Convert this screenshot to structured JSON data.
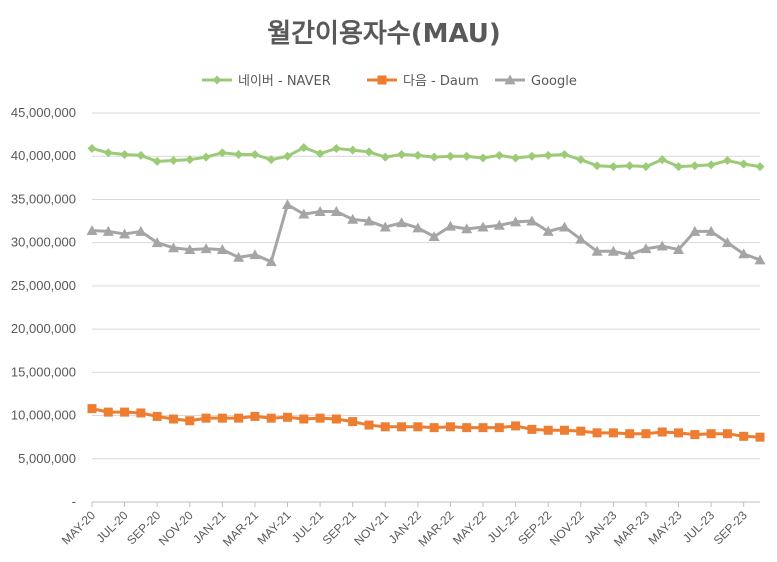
{
  "chart_data": {
    "type": "line",
    "title": "월간이용자수(MAU)",
    "xlabel": "",
    "ylabel": "",
    "ylim": [
      0,
      45000000
    ],
    "yticks": [
      0,
      5000000,
      10000000,
      15000000,
      20000000,
      25000000,
      30000000,
      35000000,
      40000000,
      45000000
    ],
    "ytick_labels": [
      "-",
      "5,000,000",
      "10,000,000",
      "15,000,000",
      "20,000,000",
      "25,000,000",
      "30,000,000",
      "35,000,000",
      "40,000,000",
      "45,000,000"
    ],
    "grid": true,
    "legend_position": "top",
    "x": [
      "MAY-20",
      "JUN-20",
      "JUL-20",
      "AUG-20",
      "SEP-20",
      "OCT-20",
      "NOV-20",
      "DEC-20",
      "JAN-21",
      "FEB-21",
      "MAR-21",
      "APR-21",
      "MAY-21",
      "JUN-21",
      "JUL-21",
      "AUG-21",
      "SEP-21",
      "OCT-21",
      "NOV-21",
      "DEC-21",
      "JAN-22",
      "FEB-22",
      "MAR-22",
      "APR-22",
      "MAY-22",
      "JUN-22",
      "JUL-22",
      "AUG-22",
      "SEP-22",
      "OCT-22",
      "NOV-22",
      "DEC-22",
      "JAN-23",
      "FEB-23",
      "MAR-23",
      "APR-23",
      "MAY-23",
      "JUN-23",
      "JUL-23",
      "AUG-23",
      "SEP-23",
      "OCT-23"
    ],
    "x_tick_labels": [
      "MAY-20",
      "JUL-20",
      "SEP-20",
      "NOV-20",
      "JAN-21",
      "MAR-21",
      "MAY-21",
      "JUL-21",
      "SEP-21",
      "NOV-21",
      "JAN-22",
      "MAR-22",
      "MAY-22",
      "JUL-22",
      "SEP-22",
      "NOV-22",
      "JAN-23",
      "MAR-23",
      "MAY-23",
      "JUL-23",
      "SEP-23"
    ],
    "series": [
      {
        "name": "네이버 - NAVER",
        "color": "#9BCB77",
        "marker": "diamond",
        "values": [
          40900000,
          40400000,
          40200000,
          40100000,
          39400000,
          39500000,
          39600000,
          39900000,
          40400000,
          40200000,
          40200000,
          39600000,
          40000000,
          41000000,
          40300000,
          40900000,
          40700000,
          40500000,
          39900000,
          40200000,
          40100000,
          39900000,
          40000000,
          40000000,
          39800000,
          40100000,
          39800000,
          40000000,
          40100000,
          40200000,
          39600000,
          38900000,
          38800000,
          38900000,
          38800000,
          39600000,
          38800000,
          38900000,
          39000000,
          39500000,
          39100000,
          38800000
        ]
      },
      {
        "name": "다음 - Daum",
        "color": "#ED7D31",
        "marker": "square",
        "values": [
          10800000,
          10400000,
          10400000,
          10300000,
          9900000,
          9600000,
          9400000,
          9700000,
          9700000,
          9700000,
          9900000,
          9700000,
          9800000,
          9600000,
          9700000,
          9600000,
          9300000,
          8900000,
          8700000,
          8700000,
          8700000,
          8600000,
          8700000,
          8600000,
          8600000,
          8600000,
          8800000,
          8400000,
          8300000,
          8300000,
          8200000,
          8000000,
          8000000,
          7900000,
          7900000,
          8100000,
          8000000,
          7800000,
          7900000,
          7900000,
          7600000,
          7500000
        ]
      },
      {
        "name": "Google",
        "color": "#A5A5A5",
        "marker": "triangle",
        "values": [
          31400000,
          31300000,
          31000000,
          31300000,
          30000000,
          29400000,
          29200000,
          29300000,
          29200000,
          28300000,
          28600000,
          27800000,
          34400000,
          33300000,
          33600000,
          33600000,
          32700000,
          32500000,
          31800000,
          32300000,
          31700000,
          30700000,
          31900000,
          31600000,
          31800000,
          32000000,
          32400000,
          32500000,
          31300000,
          31800000,
          30400000,
          29000000,
          29000000,
          28600000,
          29300000,
          29600000,
          29200000,
          31300000,
          31300000,
          30000000,
          28700000,
          28000000
        ]
      }
    ]
  }
}
